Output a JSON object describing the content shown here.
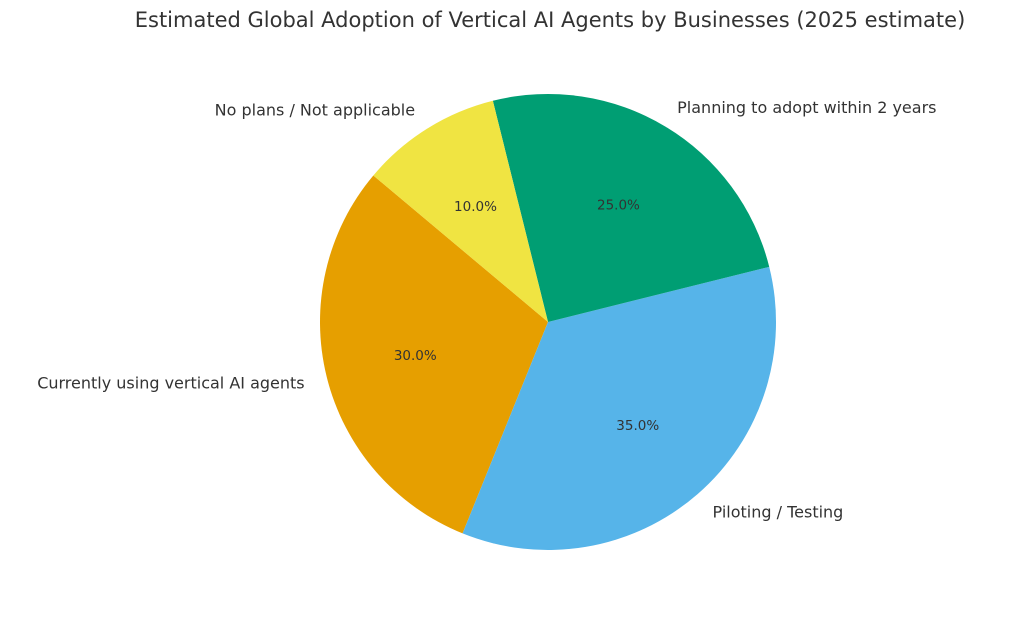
{
  "chart_data": {
    "type": "pie",
    "title": "Estimated Global Adoption of Vertical AI Agents by Businesses (2025 estimate)",
    "categories": [
      "Currently using vertical AI agents",
      "Piloting / Testing",
      "Planning to adopt within 2 years",
      "No plans / Not applicable"
    ],
    "values": [
      30,
      35,
      25,
      10
    ],
    "value_labels": [
      "30.0%",
      "35.0%",
      "25.0%",
      "10.0%"
    ],
    "colors": [
      "#E69F00",
      "#56B4E9",
      "#009E73",
      "#F0E442"
    ],
    "start_angle": 140,
    "legend": false
  }
}
